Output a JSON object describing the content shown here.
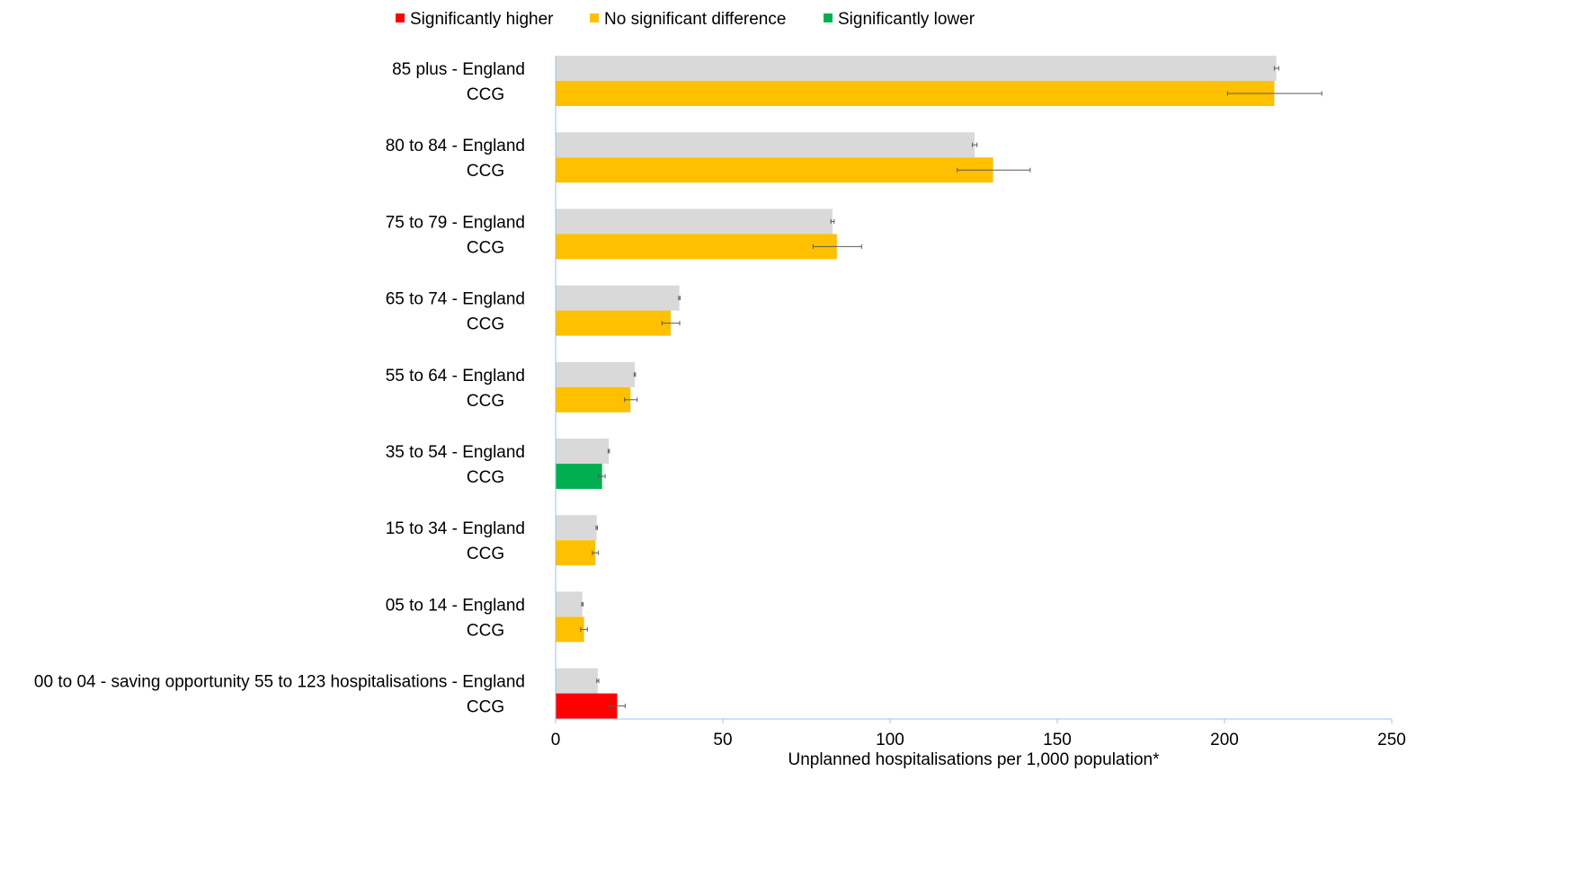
{
  "chart_data": {
    "type": "bar",
    "orientation": "horizontal",
    "categories": [
      "85 plus",
      "80 to 84",
      "75 to 79",
      "65 to 74",
      "55 to 64",
      "35 to 54",
      "15 to 34",
      "05 to 14",
      "00 to 04  - saving opportunity 55 to 123 hospitalisations"
    ],
    "category_suffix": {
      "england": "- England",
      "ccg": "CCG"
    },
    "series": [
      {
        "name": "England",
        "color": "#d9d9d9",
        "values": [
          215.5,
          125.3,
          82.8,
          37.0,
          23.7,
          15.9,
          12.3,
          8.0,
          12.6
        ],
        "error_low": [
          214.9,
          124.6,
          82.3,
          36.8,
          23.5,
          15.7,
          12.1,
          7.8,
          12.3
        ],
        "error_high": [
          216.2,
          126.0,
          83.3,
          37.2,
          23.9,
          16.1,
          12.5,
          8.2,
          12.9
        ]
      },
      {
        "name": "CCG",
        "values": [
          214.9,
          130.8,
          84.1,
          34.4,
          22.4,
          13.9,
          11.9,
          8.5,
          18.4
        ],
        "error_low": [
          200.9,
          120.1,
          77.0,
          31.8,
          20.6,
          12.8,
          11.0,
          7.5,
          16.3
        ],
        "error_high": [
          229.1,
          141.9,
          91.5,
          37.1,
          24.4,
          14.8,
          12.8,
          9.5,
          20.8
        ],
        "significance": [
          "none",
          "none",
          "none",
          "none",
          "none",
          "lower",
          "none",
          "none",
          "higher"
        ]
      }
    ],
    "significance_colors": {
      "higher": "#ff0000",
      "none": "#ffc000",
      "lower": "#00b050"
    },
    "legend": [
      {
        "label": "Significantly higher",
        "color": "#ff0000"
      },
      {
        "label": "No significant difference",
        "color": "#ffc000"
      },
      {
        "label": "Significantly lower",
        "color": "#00b050"
      }
    ],
    "legend_position": "top",
    "xlim": [
      0,
      250
    ],
    "xticks": [
      0,
      50,
      100,
      150,
      200,
      250
    ],
    "xlabel": "Unplanned hospitalisations per 1,000 population*",
    "grid": false
  }
}
